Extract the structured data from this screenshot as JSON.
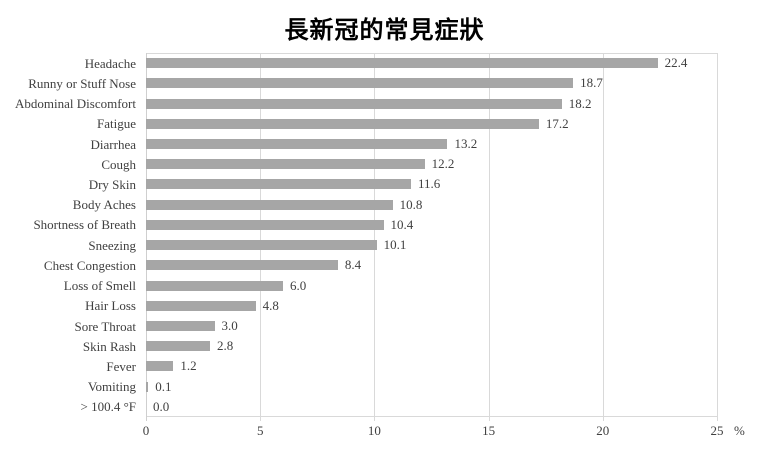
{
  "title": "長新冠的常見症狀",
  "chart_data": {
    "type": "bar",
    "orientation": "horizontal",
    "title": "長新冠的常見症狀",
    "categories": [
      "Headache",
      "Runny or Stuff Nose",
      "Abdominal Discomfort",
      "Fatigue",
      "Diarrhea",
      "Cough",
      "Dry Skin",
      "Body Aches",
      "Shortness of Breath",
      "Sneezing",
      "Chest Congestion",
      "Loss of Smell",
      "Hair Loss",
      "Sore Throat",
      "Skin Rash",
      "Fever",
      "Vomiting",
      "> 100.4 °F"
    ],
    "values": [
      22.4,
      18.7,
      18.2,
      17.2,
      13.2,
      12.2,
      11.6,
      10.8,
      10.4,
      10.1,
      8.4,
      6.0,
      4.8,
      3.0,
      2.8,
      1.2,
      0.1,
      0.0
    ],
    "value_labels": [
      "22.4",
      "18.7",
      "18.2",
      "17.2",
      "13.2",
      "12.2",
      "11.6",
      "10.8",
      "10.4",
      "10.1",
      "8.4",
      "6.0",
      "4.8",
      "3.0",
      "2.8",
      "1.2",
      "0.1",
      "0.0"
    ],
    "xlabel": "%",
    "xlim": [
      0,
      25
    ],
    "xticks": [
      0,
      5,
      10,
      15,
      20,
      25
    ],
    "grid": true,
    "legend": false,
    "bar_color": "#a6a6a6",
    "gridline_color": "#d9d9d9",
    "text_color": "#404040",
    "title_color": "#000000"
  }
}
